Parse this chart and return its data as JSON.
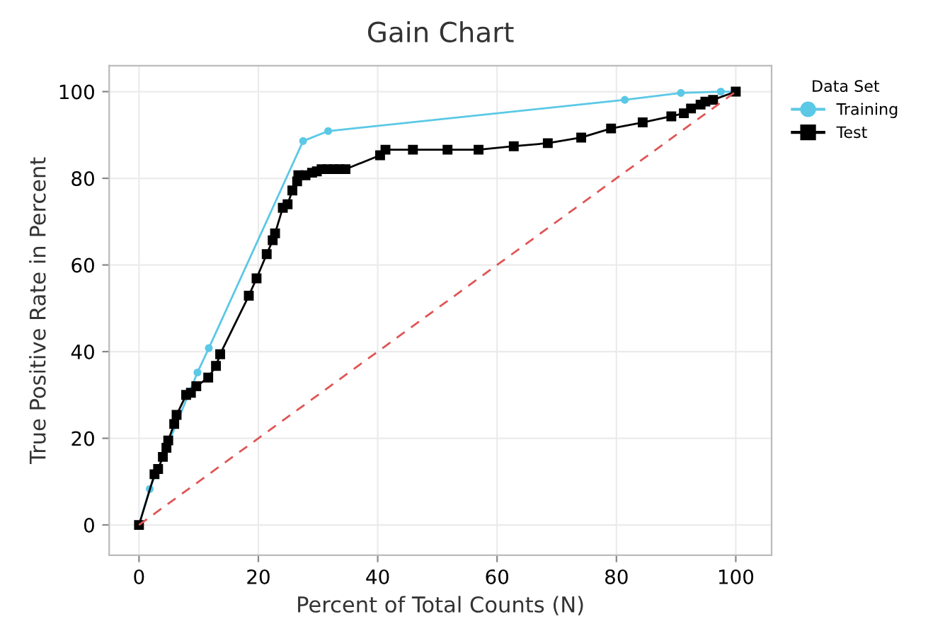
{
  "chart_data": {
    "type": "line",
    "title": "Gain Chart",
    "xlabel": "Percent of Total Counts (N)",
    "ylabel": "True Positive Rate in Percent",
    "legend_title": "Data Set",
    "legend": "top right",
    "grid": true,
    "xlim": [
      -5,
      106
    ],
    "ylim": [
      -7,
      106
    ],
    "xticks": [
      0,
      20,
      40,
      60,
      80,
      100
    ],
    "yticks": [
      0,
      20,
      40,
      60,
      80,
      100
    ],
    "series": [
      {
        "name": "Training",
        "color": "#5bc8e6",
        "marker": "circle",
        "line_style": "solid",
        "x": [
          0,
          1.8,
          9.8,
          11.7,
          27.5,
          31.7,
          81.4,
          90.8,
          97.5,
          100
        ],
        "values": [
          0,
          8.3,
          35.2,
          40.8,
          88.6,
          90.9,
          98.1,
          99.7,
          100,
          100
        ]
      },
      {
        "name": "Test",
        "color": "#000000",
        "marker": "square",
        "line_style": "solid",
        "x": [
          0,
          2.6,
          3.2,
          4.0,
          4.6,
          4.9,
          5.9,
          6.3,
          7.9,
          8.7,
          9.6,
          11.6,
          12.9,
          13.6,
          18.4,
          19.7,
          21.4,
          22.4,
          22.8,
          24.1,
          24.9,
          25.7,
          26.5,
          26.7,
          27.9,
          29.0,
          29.8,
          30.6,
          31.6,
          32.6,
          33.6,
          34.6,
          40.4,
          41.3,
          45.9,
          51.7,
          56.9,
          62.8,
          68.5,
          74.1,
          79.1,
          84.4,
          89.2,
          91.3,
          92.5,
          94.1,
          94.9,
          96.2,
          100
        ],
        "values": [
          0,
          11.7,
          12.9,
          15.7,
          17.8,
          19.5,
          23.3,
          25.4,
          30.0,
          30.5,
          32,
          34,
          36.7,
          39.4,
          52.9,
          56.9,
          62.5,
          65.7,
          67.3,
          73.2,
          74.0,
          77.2,
          79.3,
          80.7,
          80.7,
          81.3,
          81.6,
          82.1,
          82.1,
          82.1,
          82.1,
          82.1,
          85.3,
          86.6,
          86.6,
          86.6,
          86.6,
          87.4,
          88.1,
          89.4,
          91.5,
          92.9,
          94.3,
          95.0,
          96.1,
          97.0,
          97.7,
          98.1,
          100
        ]
      },
      {
        "color": "#e05555",
        "marker": "none",
        "line_style": "dashed",
        "x": [
          0,
          100
        ],
        "values": [
          0,
          100
        ]
      }
    ]
  }
}
